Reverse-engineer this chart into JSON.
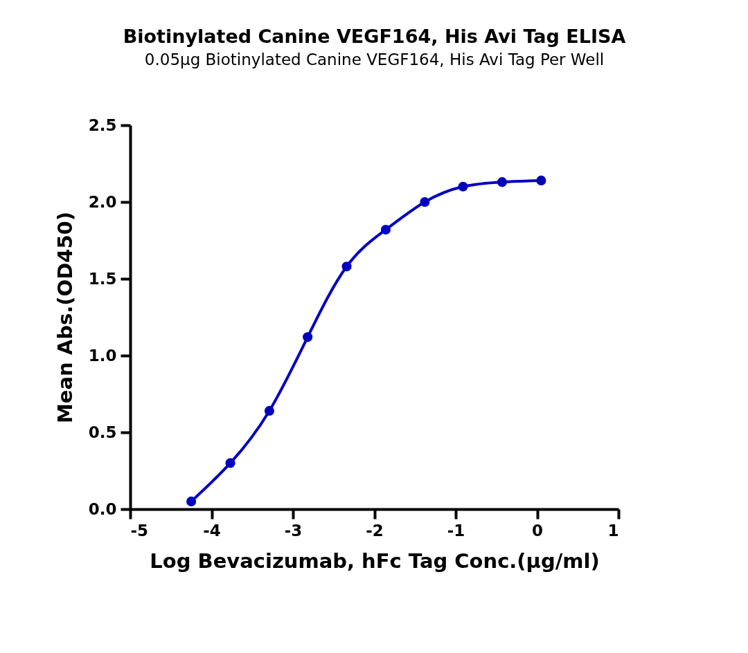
{
  "chart_data": {
    "type": "line",
    "title": "Biotinylated Canine VEGF164, His Avi Tag ELISA",
    "subtitle": "0.05μg Biotinylated Canine VEGF164, His Avi Tag Per Well",
    "xlabel": "Log Bevacizumab, hFc Tag Conc.(μg/ml)",
    "ylabel": "Mean Abs.(OD450)",
    "x": [
      -4.25,
      -3.77,
      -3.29,
      -2.82,
      -2.34,
      -1.86,
      -1.38,
      -0.91,
      -0.43,
      0.05
    ],
    "series": [
      {
        "color": "#0000c0",
        "values": [
          0.05,
          0.3,
          0.64,
          1.12,
          1.58,
          1.82,
          2.0,
          2.1,
          2.13,
          2.14
        ]
      }
    ],
    "xlim": [
      -5,
      1
    ],
    "xticks": [
      -5,
      -4,
      -3,
      -2,
      -1,
      0,
      1
    ],
    "ylim": [
      0,
      2.5
    ],
    "yticks": [
      {
        "value": 0,
        "label": "0.0"
      },
      0.5,
      {
        "value": 1,
        "label": "1.0"
      },
      1.5,
      {
        "value": 2,
        "label": "2.0"
      },
      2.5
    ],
    "marker": "circle",
    "line_style": "solid",
    "grid": false
  }
}
